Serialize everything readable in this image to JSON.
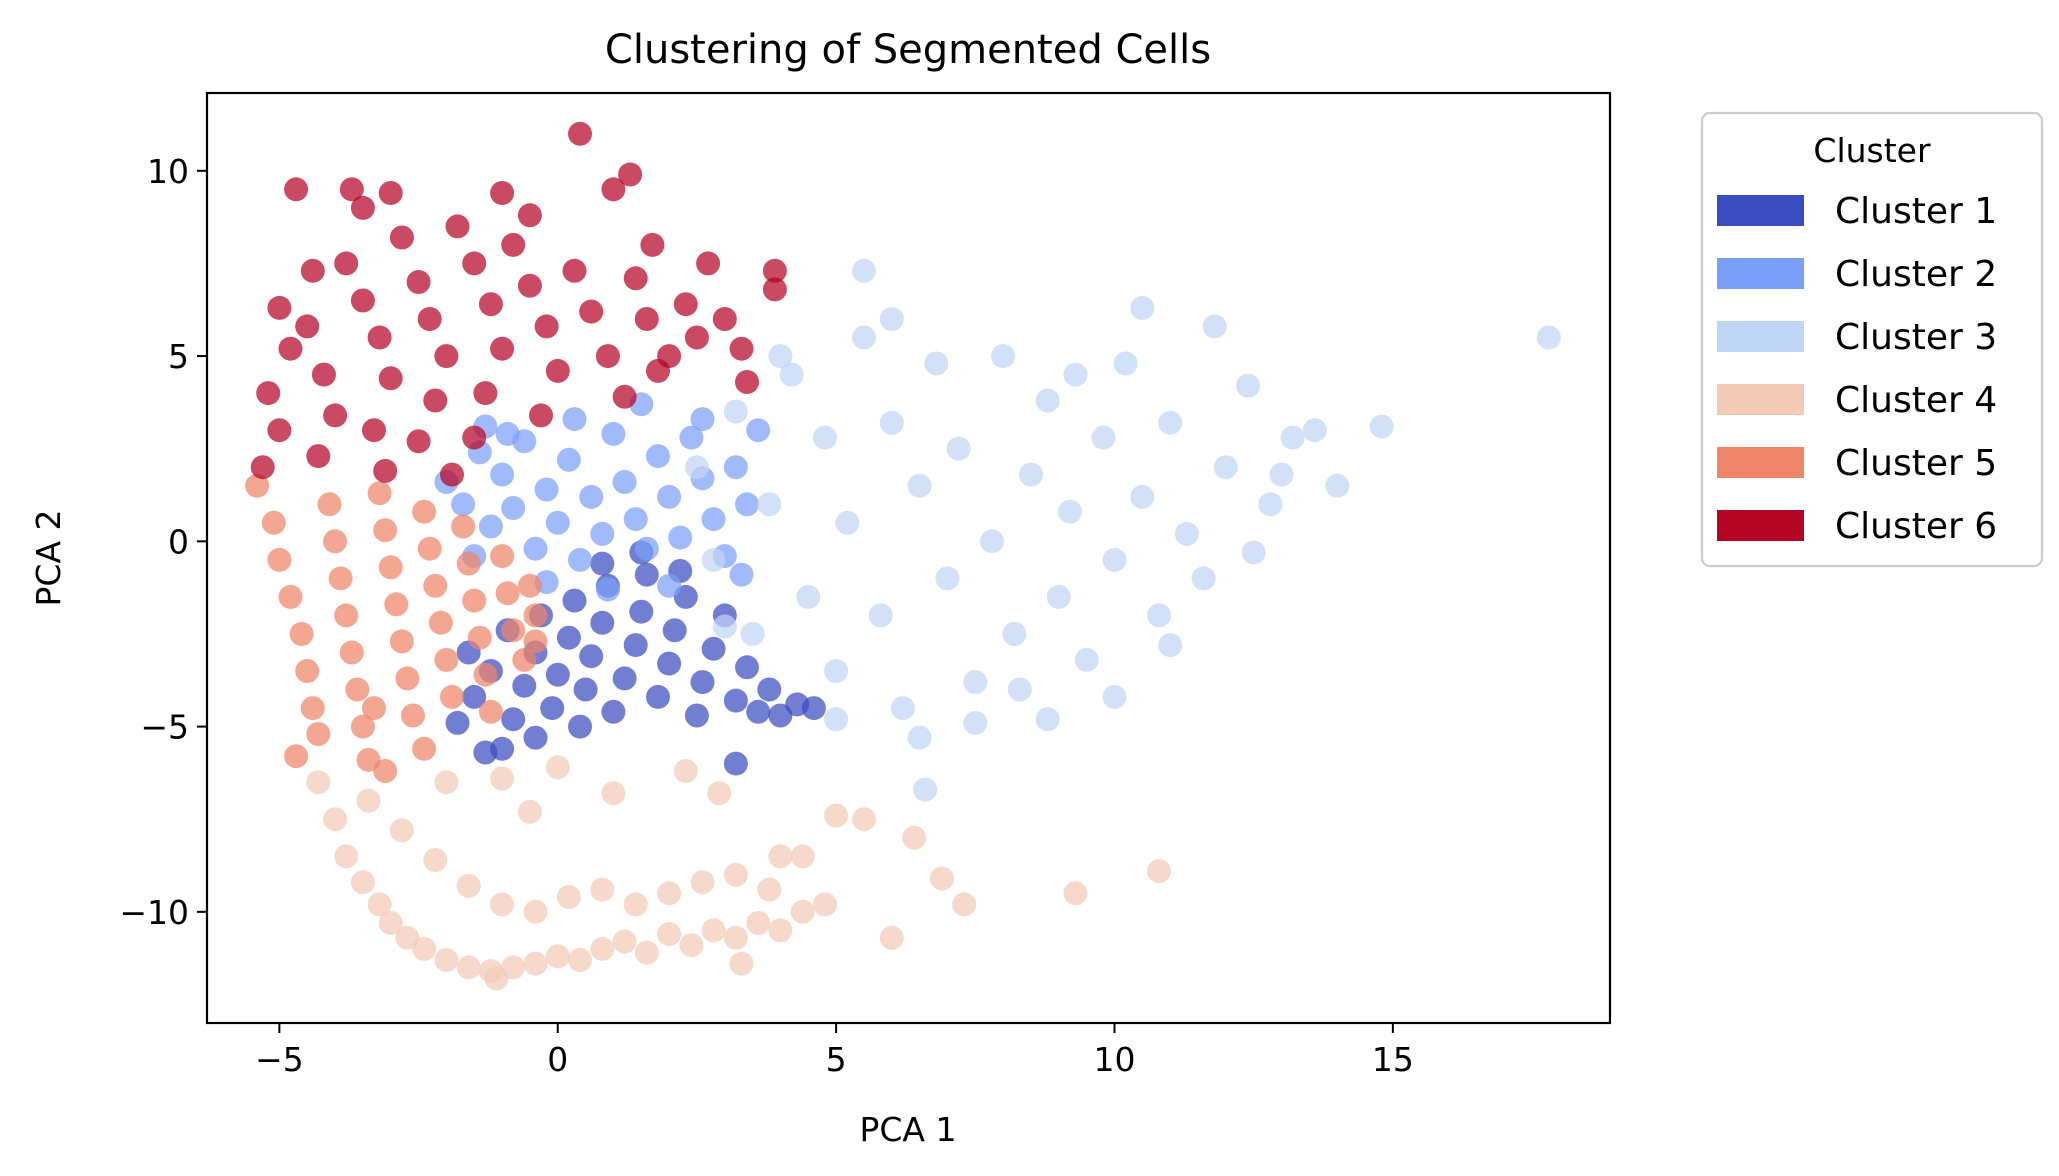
{
  "chart_data": {
    "type": "scatter",
    "title": "Clustering of Segmented Cells",
    "xlabel": "PCA 1",
    "ylabel": "PCA 2",
    "xlim": [
      -6.3,
      18.9
    ],
    "ylim": [
      -13.0,
      12.1
    ],
    "xticks": [
      -5,
      0,
      5,
      10,
      15
    ],
    "yticks": [
      -10,
      -5,
      0,
      5,
      10
    ],
    "grid": false,
    "legend": {
      "title": "Cluster",
      "placement": "outside-top-right",
      "entries": [
        "Cluster 1",
        "Cluster 2",
        "Cluster 3",
        "Cluster 4",
        "Cluster 5",
        "Cluster 6"
      ]
    },
    "series": [
      {
        "name": "Cluster 1",
        "color": "#3b4cc0",
        "points": [
          [
            -1.8,
            -4.9
          ],
          [
            -1.5,
            -4.2
          ],
          [
            -1.2,
            -3.5
          ],
          [
            -1.0,
            -5.6
          ],
          [
            -0.8,
            -4.8
          ],
          [
            -0.6,
            -3.9
          ],
          [
            -0.4,
            -3.0
          ],
          [
            -0.3,
            -2.0
          ],
          [
            -0.1,
            -4.5
          ],
          [
            0.0,
            -3.6
          ],
          [
            0.2,
            -2.6
          ],
          [
            0.3,
            -1.6
          ],
          [
            0.5,
            -4.0
          ],
          [
            0.6,
            -3.1
          ],
          [
            0.8,
            -2.2
          ],
          [
            0.9,
            -1.2
          ],
          [
            1.0,
            -4.6
          ],
          [
            1.2,
            -3.7
          ],
          [
            1.4,
            -2.8
          ],
          [
            1.5,
            -1.9
          ],
          [
            1.6,
            -0.9
          ],
          [
            1.8,
            -4.2
          ],
          [
            2.0,
            -3.3
          ],
          [
            2.1,
            -2.4
          ],
          [
            2.3,
            -1.5
          ],
          [
            2.5,
            -4.7
          ],
          [
            2.6,
            -3.8
          ],
          [
            2.8,
            -2.9
          ],
          [
            3.0,
            -2.0
          ],
          [
            3.2,
            -4.3
          ],
          [
            3.4,
            -3.4
          ],
          [
            3.6,
            -4.6
          ],
          [
            3.8,
            -4.0
          ],
          [
            4.0,
            -4.7
          ],
          [
            4.3,
            -4.4
          ],
          [
            4.6,
            -4.5
          ],
          [
            3.2,
            -6.0
          ],
          [
            -1.3,
            -5.7
          ],
          [
            -0.4,
            -5.3
          ],
          [
            1.5,
            -0.3
          ],
          [
            0.8,
            -0.6
          ],
          [
            2.2,
            -0.8
          ],
          [
            -1.6,
            -3.0
          ],
          [
            -0.9,
            -2.4
          ],
          [
            0.4,
            -5.0
          ]
        ]
      },
      {
        "name": "Cluster 2",
        "color": "#7b9ff9",
        "points": [
          [
            -2.0,
            1.6
          ],
          [
            -1.7,
            1.0
          ],
          [
            -1.4,
            2.4
          ],
          [
            -1.2,
            0.4
          ],
          [
            -1.0,
            1.8
          ],
          [
            -0.8,
            0.9
          ],
          [
            -0.6,
            2.7
          ],
          [
            -0.4,
            -0.2
          ],
          [
            -0.2,
            1.4
          ],
          [
            0.0,
            0.5
          ],
          [
            0.2,
            2.2
          ],
          [
            0.4,
            -0.5
          ],
          [
            0.6,
            1.2
          ],
          [
            0.8,
            0.2
          ],
          [
            1.0,
            2.9
          ],
          [
            1.2,
            1.6
          ],
          [
            1.4,
            0.6
          ],
          [
            1.6,
            -0.2
          ],
          [
            1.8,
            2.3
          ],
          [
            2.0,
            1.2
          ],
          [
            2.2,
            0.1
          ],
          [
            2.4,
            2.8
          ],
          [
            2.6,
            1.7
          ],
          [
            2.8,
            0.6
          ],
          [
            3.0,
            -0.4
          ],
          [
            3.2,
            2.0
          ],
          [
            3.4,
            1.0
          ],
          [
            3.6,
            3.0
          ],
          [
            -0.9,
            2.9
          ],
          [
            0.3,
            3.3
          ],
          [
            1.5,
            3.7
          ],
          [
            2.6,
            3.3
          ],
          [
            -1.5,
            -0.4
          ],
          [
            -0.2,
            -1.1
          ],
          [
            0.9,
            -1.3
          ],
          [
            2.0,
            -1.2
          ],
          [
            3.3,
            -0.9
          ],
          [
            -1.3,
            3.1
          ]
        ]
      },
      {
        "name": "Cluster 3",
        "color": "#c0d4f5",
        "points": [
          [
            2.5,
            2.0
          ],
          [
            2.8,
            -0.5
          ],
          [
            3.2,
            3.5
          ],
          [
            3.5,
            -2.5
          ],
          [
            3.8,
            1.0
          ],
          [
            4.2,
            4.5
          ],
          [
            4.5,
            -1.5
          ],
          [
            4.8,
            2.8
          ],
          [
            5.0,
            -3.5
          ],
          [
            5.2,
            0.5
          ],
          [
            5.5,
            5.5
          ],
          [
            5.8,
            -2.0
          ],
          [
            6.0,
            3.2
          ],
          [
            6.2,
            -4.5
          ],
          [
            6.5,
            1.5
          ],
          [
            6.8,
            4.8
          ],
          [
            7.0,
            -1.0
          ],
          [
            7.2,
            2.5
          ],
          [
            7.5,
            -3.8
          ],
          [
            7.8,
            0.0
          ],
          [
            8.0,
            5.0
          ],
          [
            8.2,
            -2.5
          ],
          [
            8.5,
            1.8
          ],
          [
            8.8,
            3.8
          ],
          [
            9.0,
            -1.5
          ],
          [
            9.2,
            0.8
          ],
          [
            9.5,
            -3.2
          ],
          [
            9.8,
            2.8
          ],
          [
            10.0,
            -0.5
          ],
          [
            10.2,
            4.8
          ],
          [
            10.5,
            1.2
          ],
          [
            10.8,
            -2.0
          ],
          [
            11.0,
            3.2
          ],
          [
            11.3,
            0.2
          ],
          [
            11.6,
            -1.0
          ],
          [
            12.0,
            2.0
          ],
          [
            12.4,
            4.2
          ],
          [
            12.8,
            1.0
          ],
          [
            13.2,
            2.8
          ],
          [
            13.6,
            3.0
          ],
          [
            14.0,
            1.5
          ],
          [
            14.8,
            3.1
          ],
          [
            17.8,
            5.5
          ],
          [
            5.5,
            7.3
          ],
          [
            6.5,
            -5.3
          ],
          [
            6.6,
            -6.7
          ],
          [
            8.8,
            -4.8
          ],
          [
            10.0,
            -4.2
          ],
          [
            10.5,
            6.3
          ],
          [
            11.8,
            5.8
          ],
          [
            9.3,
            4.5
          ],
          [
            7.5,
            -4.9
          ],
          [
            12.5,
            -0.3
          ],
          [
            13.0,
            1.8
          ],
          [
            6.0,
            6.0
          ],
          [
            4.0,
            5.0
          ],
          [
            5.0,
            -4.8
          ],
          [
            3.0,
            -2.3
          ],
          [
            8.3,
            -4.0
          ],
          [
            11.0,
            -2.8
          ]
        ]
      },
      {
        "name": "Cluster 4",
        "color": "#f2cab5",
        "points": [
          [
            -4.3,
            -6.5
          ],
          [
            -4.0,
            -7.5
          ],
          [
            -3.8,
            -8.5
          ],
          [
            -3.5,
            -9.2
          ],
          [
            -3.2,
            -9.8
          ],
          [
            -3.0,
            -10.3
          ],
          [
            -2.7,
            -10.7
          ],
          [
            -2.4,
            -11.0
          ],
          [
            -2.0,
            -11.3
          ],
          [
            -1.6,
            -11.5
          ],
          [
            -1.2,
            -11.6
          ],
          [
            -0.8,
            -11.5
          ],
          [
            -0.4,
            -11.4
          ],
          [
            0.0,
            -11.2
          ],
          [
            0.4,
            -11.3
          ],
          [
            0.8,
            -11.0
          ],
          [
            1.2,
            -10.8
          ],
          [
            1.6,
            -11.1
          ],
          [
            2.0,
            -10.6
          ],
          [
            2.4,
            -10.9
          ],
          [
            2.8,
            -10.5
          ],
          [
            3.2,
            -10.7
          ],
          [
            3.6,
            -10.3
          ],
          [
            4.0,
            -10.5
          ],
          [
            4.4,
            -10.0
          ],
          [
            4.8,
            -9.8
          ],
          [
            -3.4,
            -7.0
          ],
          [
            -2.8,
            -7.8
          ],
          [
            -2.2,
            -8.6
          ],
          [
            -1.6,
            -9.3
          ],
          [
            -1.0,
            -9.8
          ],
          [
            -0.4,
            -10.0
          ],
          [
            0.2,
            -9.6
          ],
          [
            0.8,
            -9.4
          ],
          [
            1.4,
            -9.8
          ],
          [
            2.0,
            -9.5
          ],
          [
            2.6,
            -9.2
          ],
          [
            3.2,
            -9.0
          ],
          [
            3.8,
            -9.4
          ],
          [
            4.4,
            -8.5
          ],
          [
            5.0,
            -7.4
          ],
          [
            5.5,
            -7.5
          ],
          [
            6.4,
            -8.0
          ],
          [
            6.9,
            -9.1
          ],
          [
            7.3,
            -9.8
          ],
          [
            9.3,
            -9.5
          ],
          [
            10.8,
            -8.9
          ],
          [
            6.0,
            -10.7
          ],
          [
            -1.0,
            -6.4
          ],
          [
            0.0,
            -6.1
          ],
          [
            1.0,
            -6.8
          ],
          [
            2.3,
            -6.2
          ],
          [
            2.9,
            -6.8
          ],
          [
            -2.0,
            -6.5
          ],
          [
            -0.5,
            -7.3
          ],
          [
            4.0,
            -8.5
          ],
          [
            3.3,
            -11.4
          ],
          [
            -1.1,
            -11.8
          ]
        ]
      },
      {
        "name": "Cluster 5",
        "color": "#ee8468",
        "points": [
          [
            -5.4,
            1.5
          ],
          [
            -5.1,
            0.5
          ],
          [
            -5.0,
            -0.5
          ],
          [
            -4.8,
            -1.5
          ],
          [
            -4.6,
            -2.5
          ],
          [
            -4.5,
            -3.5
          ],
          [
            -4.4,
            -4.5
          ],
          [
            -4.3,
            -5.2
          ],
          [
            -4.1,
            1.0
          ],
          [
            -4.0,
            0.0
          ],
          [
            -3.9,
            -1.0
          ],
          [
            -3.8,
            -2.0
          ],
          [
            -3.7,
            -3.0
          ],
          [
            -3.6,
            -4.0
          ],
          [
            -3.5,
            -5.0
          ],
          [
            -3.4,
            -5.9
          ],
          [
            -3.2,
            1.3
          ],
          [
            -3.1,
            0.3
          ],
          [
            -3.0,
            -0.7
          ],
          [
            -2.9,
            -1.7
          ],
          [
            -2.8,
            -2.7
          ],
          [
            -2.7,
            -3.7
          ],
          [
            -2.6,
            -4.7
          ],
          [
            -2.4,
            0.8
          ],
          [
            -2.3,
            -0.2
          ],
          [
            -2.2,
            -1.2
          ],
          [
            -2.1,
            -2.2
          ],
          [
            -2.0,
            -3.2
          ],
          [
            -1.9,
            -4.2
          ],
          [
            -1.7,
            0.4
          ],
          [
            -1.6,
            -0.6
          ],
          [
            -1.5,
            -1.6
          ],
          [
            -1.4,
            -2.6
          ],
          [
            -1.3,
            -3.6
          ],
          [
            -1.2,
            -4.6
          ],
          [
            -1.0,
            -0.4
          ],
          [
            -0.9,
            -1.4
          ],
          [
            -0.8,
            -2.4
          ],
          [
            -0.6,
            -3.2
          ],
          [
            -0.5,
            -1.2
          ],
          [
            -0.4,
            -2.0
          ],
          [
            -3.3,
            -4.5
          ],
          [
            -4.7,
            -5.8
          ],
          [
            -3.1,
            -6.2
          ],
          [
            -2.4,
            -5.6
          ],
          [
            -0.4,
            -2.7
          ]
        ]
      },
      {
        "name": "Cluster 6",
        "color": "#b40426",
        "points": [
          [
            0.4,
            11.0
          ],
          [
            1.3,
            9.9
          ],
          [
            1.0,
            9.5
          ],
          [
            -4.7,
            9.5
          ],
          [
            -3.7,
            9.5
          ],
          [
            -3.0,
            9.4
          ],
          [
            -1.0,
            9.4
          ],
          [
            -3.5,
            9.0
          ],
          [
            -0.5,
            8.8
          ],
          [
            -4.4,
            7.3
          ],
          [
            -5.0,
            6.3
          ],
          [
            -4.8,
            5.2
          ],
          [
            -5.2,
            4.0
          ],
          [
            -5.0,
            3.0
          ],
          [
            -5.3,
            2.0
          ],
          [
            -4.5,
            5.8
          ],
          [
            -4.2,
            4.5
          ],
          [
            -4.0,
            3.4
          ],
          [
            -4.3,
            2.3
          ],
          [
            -3.8,
            7.5
          ],
          [
            -3.5,
            6.5
          ],
          [
            -3.2,
            5.5
          ],
          [
            -3.0,
            4.4
          ],
          [
            -3.3,
            3.0
          ],
          [
            -3.1,
            1.9
          ],
          [
            -2.8,
            8.2
          ],
          [
            -2.5,
            7.0
          ],
          [
            -2.3,
            6.0
          ],
          [
            -2.0,
            5.0
          ],
          [
            -2.2,
            3.8
          ],
          [
            -2.5,
            2.7
          ],
          [
            -1.8,
            8.5
          ],
          [
            -1.5,
            7.5
          ],
          [
            -1.2,
            6.4
          ],
          [
            -1.0,
            5.2
          ],
          [
            -1.3,
            4.0
          ],
          [
            -1.5,
            2.8
          ],
          [
            -0.8,
            8.0
          ],
          [
            -0.5,
            6.9
          ],
          [
            -0.2,
            5.8
          ],
          [
            0.0,
            4.6
          ],
          [
            -0.3,
            3.4
          ],
          [
            0.3,
            7.3
          ],
          [
            0.6,
            6.2
          ],
          [
            0.9,
            5.0
          ],
          [
            1.2,
            3.9
          ],
          [
            1.4,
            7.1
          ],
          [
            1.7,
            8.0
          ],
          [
            1.6,
            6.0
          ],
          [
            2.0,
            5.0
          ],
          [
            2.3,
            6.4
          ],
          [
            2.5,
            5.5
          ],
          [
            2.7,
            7.5
          ],
          [
            3.0,
            6.0
          ],
          [
            3.3,
            5.2
          ],
          [
            3.4,
            4.3
          ],
          [
            3.9,
            7.3
          ],
          [
            3.9,
            6.8
          ],
          [
            1.8,
            4.6
          ],
          [
            -1.9,
            1.8
          ]
        ]
      }
    ]
  }
}
